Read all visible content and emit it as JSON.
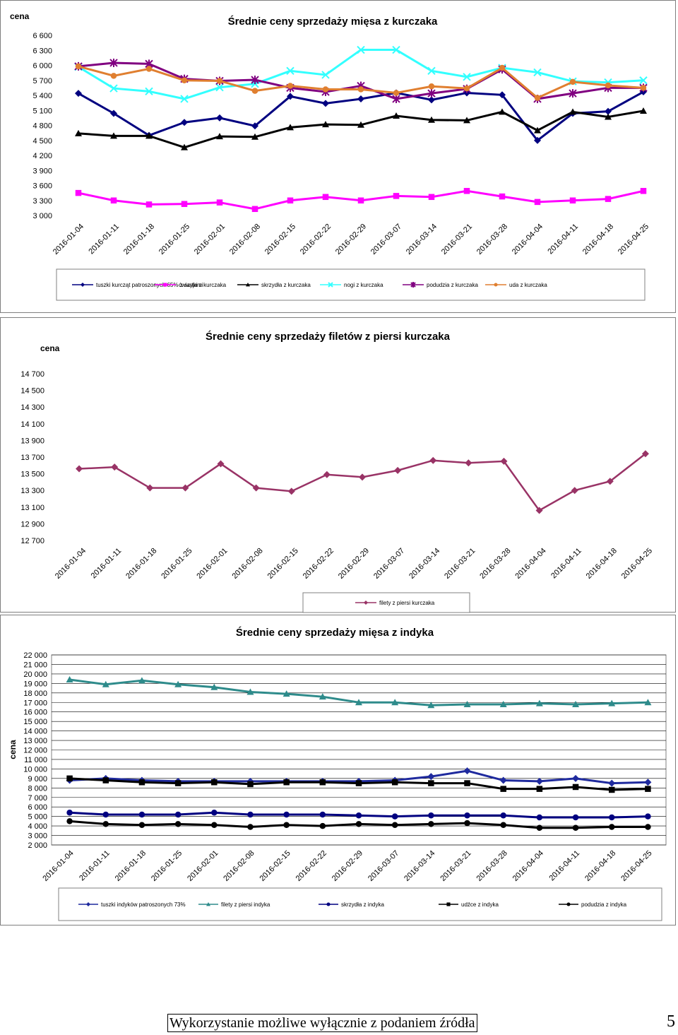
{
  "chart_data": [
    {
      "type": "line",
      "title": "Średnie ceny sprzedaży mięsa z kurczaka",
      "ylabel": "cena",
      "ylim": [
        3000,
        6600
      ],
      "yticks": [
        3000,
        3300,
        3600,
        3900,
        4200,
        4500,
        4800,
        5100,
        5400,
        5700,
        6000,
        6300,
        6600
      ],
      "ytick_labels": [
        "3 000",
        "3 300",
        "3 600",
        "3 900",
        "4 200",
        "4 500",
        "4 800",
        "5 100",
        "5 400",
        "5 700",
        "6 000",
        "6 300",
        "6 600"
      ],
      "categories": [
        "2016-01-04",
        "2016-01-11",
        "2016-01-18",
        "2016-01-25",
        "2016-02-01",
        "2016-02-08",
        "2016-02-15",
        "2016-02-22",
        "2016-02-29",
        "2016-03-07",
        "2016-03-14",
        "2016-03-21",
        "2016-03-28",
        "2016-04-04",
        "2016-04-11",
        "2016-04-18",
        "2016-04-25"
      ],
      "grid": false,
      "legend_position": "bottom",
      "series": [
        {
          "name": "tuszki kurcząt patroszonych 65% z szyjami",
          "color": "#000080",
          "marker": "diamond",
          "values": [
            5440,
            5040,
            4600,
            4860,
            4950,
            4790,
            5380,
            5240,
            5330,
            5450,
            5310,
            5450,
            5410,
            4500,
            5040,
            5080,
            5470
          ]
        },
        {
          "name": "ćwiartki z kurczaka",
          "color": "#ff00ff",
          "marker": "square",
          "values": [
            3450,
            3300,
            3220,
            3230,
            3260,
            3130,
            3300,
            3370,
            3300,
            3390,
            3370,
            3490,
            3380,
            3270,
            3300,
            3330,
            3490
          ]
        },
        {
          "name": "skrzydła z kurczaka",
          "color": "#000000",
          "marker": "triangle",
          "values": [
            4640,
            4590,
            4590,
            4360,
            4580,
            4570,
            4760,
            4820,
            4810,
            4990,
            4910,
            4900,
            5070,
            4700,
            5070,
            4970,
            5090
          ]
        },
        {
          "name": "nogi z kurczaka",
          "color": "#33ffff",
          "marker": "x",
          "values": [
            5970,
            5540,
            5480,
            5330,
            5560,
            5630,
            5890,
            5810,
            6310,
            6310,
            5890,
            5770,
            5950,
            5860,
            5680,
            5660,
            5700
          ]
        },
        {
          "name": "podudzia z kurczaka",
          "color": "#800080",
          "marker": "star",
          "values": [
            5980,
            6050,
            6030,
            5730,
            5690,
            5710,
            5550,
            5470,
            5590,
            5330,
            5440,
            5530,
            5920,
            5330,
            5440,
            5550,
            5550
          ]
        },
        {
          "name": "uda z kurczaka",
          "color": "#e07f30",
          "marker": "circle",
          "values": [
            5980,
            5790,
            5930,
            5700,
            5690,
            5490,
            5590,
            5520,
            5520,
            5450,
            5580,
            5540,
            5950,
            5350,
            5670,
            5600,
            5550
          ]
        }
      ]
    },
    {
      "type": "line",
      "title": "Średnie ceny sprzedaży filetów z piersi kurczaka",
      "ylabel": "cena",
      "ylim": [
        12700,
        14700
      ],
      "yticks": [
        12700,
        12900,
        13100,
        13300,
        13500,
        13700,
        13900,
        14100,
        14300,
        14500,
        14700
      ],
      "ytick_labels": [
        "12 700",
        "12 900",
        "13 100",
        "13 300",
        "13 500",
        "13 700",
        "13 900",
        "14 100",
        "14 300",
        "14 500",
        "14 700"
      ],
      "categories": [
        "2016-01-04",
        "2016-01-11",
        "2016-01-18",
        "2016-01-25",
        "2016-02-01",
        "2016-02-08",
        "2016-02-15",
        "2016-02-22",
        "2016-02-29",
        "2016-03-07",
        "2016-03-14",
        "2016-03-21",
        "2016-03-28",
        "2016-04-04",
        "2016-04-11",
        "2016-04-18",
        "2016-04-25"
      ],
      "grid": false,
      "legend_position": "bottom",
      "series": [
        {
          "name": "filety z piersi kurczaka",
          "color": "#993366",
          "marker": "diamond",
          "values": [
            13560,
            13580,
            13330,
            13330,
            13620,
            13330,
            13290,
            13490,
            13460,
            13540,
            13660,
            13630,
            13650,
            13060,
            13300,
            13410,
            13740
          ]
        }
      ]
    },
    {
      "type": "line",
      "title": "Średnie ceny sprzedaży mięsa z indyka",
      "ylabel": "cena",
      "ylim": [
        2000,
        22000
      ],
      "yticks": [
        2000,
        3000,
        4000,
        5000,
        6000,
        7000,
        8000,
        9000,
        10000,
        11000,
        12000,
        13000,
        14000,
        15000,
        16000,
        17000,
        18000,
        19000,
        20000,
        21000,
        22000
      ],
      "ytick_labels": [
        "2 000",
        "3 000",
        "4 000",
        "5 000",
        "6 000",
        "7 000",
        "8 000",
        "9 000",
        "10 000",
        "11 000",
        "12 000",
        "13 000",
        "14 000",
        "15 000",
        "16 000",
        "17 000",
        "18 000",
        "19 000",
        "20 000",
        "21 000",
        "22 000"
      ],
      "categories": [
        "2016-01-04",
        "2016-01-11",
        "2016-01-18",
        "2016-01-25",
        "2016-02-01",
        "2016-02-08",
        "2016-02-15",
        "2016-02-22",
        "2016-02-29",
        "2016-03-07",
        "2016-03-14",
        "2016-03-21",
        "2016-03-28",
        "2016-04-04",
        "2016-04-11",
        "2016-04-18",
        "2016-04-25"
      ],
      "grid": true,
      "legend_position": "bottom",
      "series": [
        {
          "name": "tuszki indyków patroszonych 73%",
          "color": "#1f2a9e",
          "marker": "diamond",
          "values": [
            8800,
            9000,
            8800,
            8700,
            8700,
            8700,
            8700,
            8700,
            8700,
            8800,
            9200,
            9800,
            8800,
            8700,
            9000,
            8500,
            8600
          ]
        },
        {
          "name": "filety z piersi indyka",
          "color": "#2e8b8b",
          "marker": "triangle",
          "values": [
            19400,
            18900,
            19300,
            18900,
            18600,
            18100,
            17900,
            17600,
            17000,
            17000,
            16700,
            16800,
            16800,
            16900,
            16800,
            16900,
            17000
          ]
        },
        {
          "name": "skrzydła z indyka",
          "color": "#000080",
          "marker": "circle",
          "values": [
            5400,
            5200,
            5200,
            5200,
            5400,
            5200,
            5200,
            5200,
            5100,
            5000,
            5100,
            5100,
            5100,
            4900,
            4900,
            4900,
            5000
          ]
        },
        {
          "name": "udźce z indyka",
          "color": "#000000",
          "marker": "square",
          "values": [
            9000,
            8800,
            8600,
            8500,
            8600,
            8400,
            8600,
            8600,
            8500,
            8600,
            8500,
            8500,
            7900,
            7900,
            8100,
            7800,
            7900
          ]
        },
        {
          "name": "podudzia z indyka",
          "color": "#000000",
          "marker": "circle",
          "values": [
            4500,
            4200,
            4100,
            4200,
            4100,
            3900,
            4100,
            4000,
            4200,
            4100,
            4200,
            4300,
            4100,
            3800,
            3800,
            3900,
            3900
          ]
        }
      ]
    }
  ],
  "footer": {
    "text": "Wykorzystanie możliwe wyłącznie z podaniem źródła",
    "page": "5"
  }
}
